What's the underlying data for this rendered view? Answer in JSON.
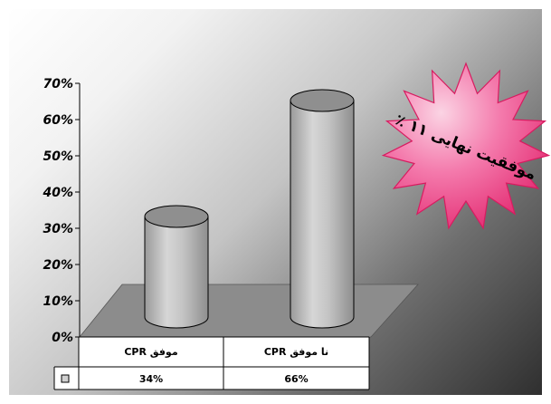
{
  "chart_data": {
    "type": "bar",
    "style": "3d-cylinder",
    "categories": [
      "موفق CPR",
      "نا موفق CPR"
    ],
    "values": [
      34,
      66
    ],
    "value_labels": [
      "34%",
      "66%"
    ],
    "series": [
      {
        "name": "",
        "values": [
          34,
          66
        ]
      }
    ],
    "yticks": [
      "0%",
      "10%",
      "20%",
      "30%",
      "40%",
      "50%",
      "60%",
      "70%"
    ],
    "ylim": [
      0,
      70
    ],
    "title": "",
    "xlabel": "",
    "ylabel": "",
    "grid": false,
    "legend": "data-table",
    "annotation": "موفقیت نهایی ۱۱ ٪",
    "colors": {
      "bar_fill": "#c8c8c8",
      "floor": "#8c8c8c",
      "star_fill": "#f0478d",
      "background_dark": "#2f2f2f"
    }
  }
}
